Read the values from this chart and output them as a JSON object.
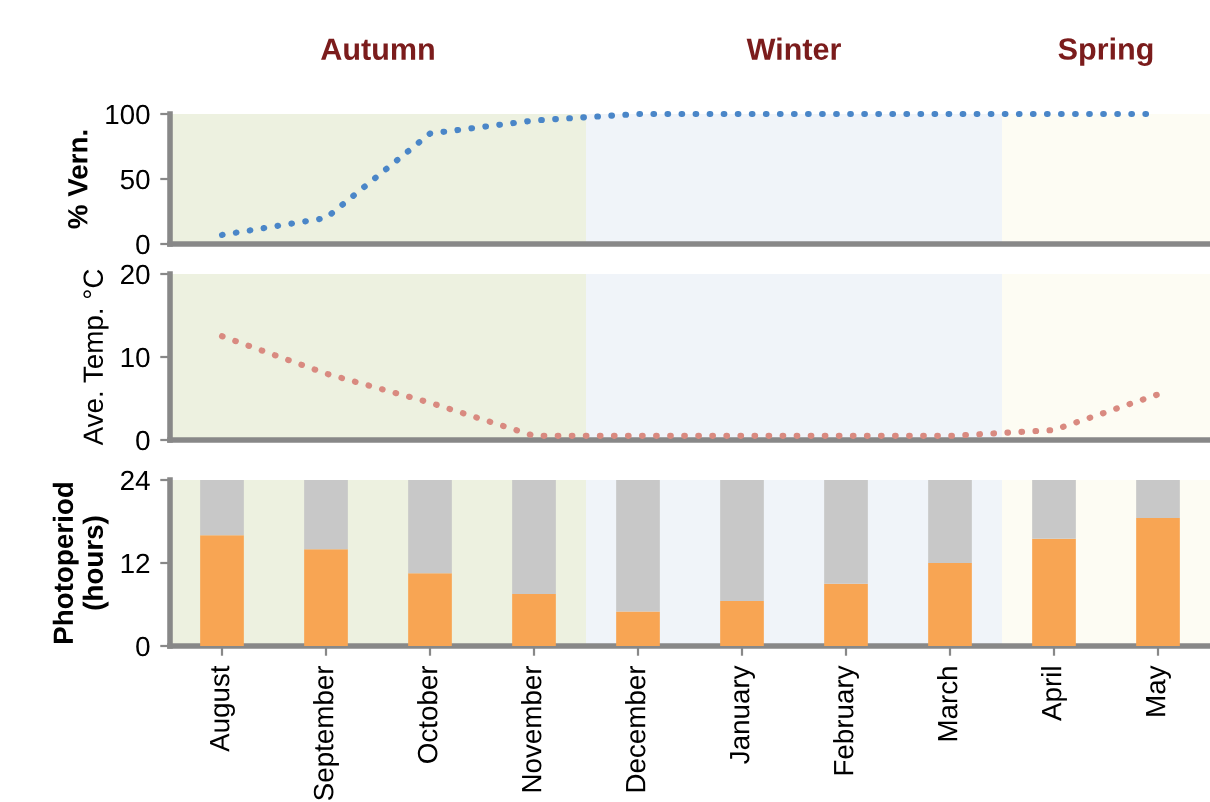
{
  "chart_data": [
    {
      "type": "line",
      "ylabel": "% Vern.",
      "categories": [
        "August",
        "September",
        "October",
        "November",
        "December",
        "January",
        "February",
        "March",
        "April",
        "May"
      ],
      "series": [
        {
          "color": "#4a86c8",
          "values": [
            7,
            20,
            85,
            95,
            100,
            100,
            100,
            100,
            100,
            100
          ]
        }
      ],
      "ylim": [
        0,
        100
      ],
      "yticks": [
        0,
        50,
        100
      ],
      "line_style": "dotted",
      "marker": "none",
      "grid": false,
      "tick_labels": "y",
      "bands": [
        {
          "axis": "x",
          "from": "August",
          "to": "November",
          "label": "Autumn",
          "color": "#edf1e0"
        },
        {
          "axis": "x",
          "from": "December",
          "to": "March",
          "label": "Winter",
          "color": "#f0f4f9"
        },
        {
          "axis": "x",
          "from": "April",
          "to": "May",
          "label": "Spring",
          "color": "#fdfcf3"
        }
      ]
    },
    {
      "type": "line",
      "ylabel": "Ave. Temp. °C",
      "categories": [
        "August",
        "September",
        "October",
        "November",
        "December",
        "January",
        "February",
        "March",
        "April",
        "May"
      ],
      "series": [
        {
          "color": "#d98a80",
          "values": [
            12.5,
            8,
            4.5,
            0.5,
            0.5,
            0.5,
            0.5,
            0.5,
            1.2,
            5.5
          ]
        }
      ],
      "ylim": [
        0,
        20
      ],
      "yticks": [
        0,
        10,
        20
      ],
      "line_style": "dotted",
      "marker": "none",
      "grid": false,
      "tick_labels": "y",
      "bands": [
        {
          "axis": "x",
          "from": "August",
          "to": "November",
          "color": "#edf1e0"
        },
        {
          "axis": "x",
          "from": "December",
          "to": "March",
          "color": "#f0f4f9"
        },
        {
          "axis": "x",
          "from": "April",
          "to": "May",
          "color": "#fdfcf3"
        }
      ]
    },
    {
      "type": "bar",
      "stacked": true,
      "ylabel": "Photoperiod\n(hours)",
      "categories": [
        "August",
        "September",
        "October",
        "November",
        "December",
        "January",
        "February",
        "March",
        "April",
        "May"
      ],
      "series": [
        {
          "color": "#f8a553",
          "values": [
            16,
            14,
            10.5,
            7.5,
            5,
            6.5,
            9,
            12,
            15.5,
            18.5
          ]
        },
        {
          "color": "#c8c8c8",
          "values": [
            8,
            10,
            13.5,
            16.5,
            19,
            17.5,
            15,
            12,
            8.5,
            5.5
          ]
        }
      ],
      "ylim": [
        0,
        24
      ],
      "yticks": [
        0,
        12,
        24
      ],
      "grid": false,
      "bands": [
        {
          "axis": "x",
          "from": "August",
          "to": "November",
          "color": "#edf1e0"
        },
        {
          "axis": "x",
          "from": "December",
          "to": "March",
          "color": "#f0f4f9"
        },
        {
          "axis": "x",
          "from": "April",
          "to": "May",
          "color": "#fdfcf3"
        }
      ]
    }
  ]
}
